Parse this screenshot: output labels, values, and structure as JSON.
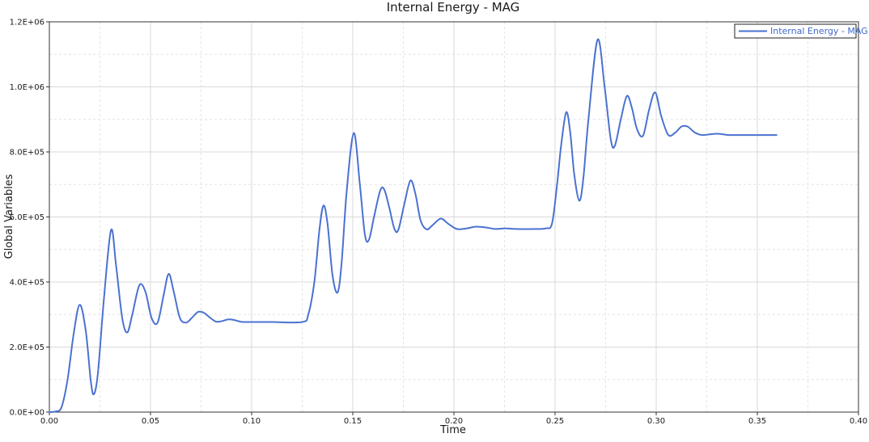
{
  "chart_data": {
    "type": "line",
    "title": "Internal Energy - MAG",
    "xlabel": "Time",
    "ylabel": "Global Variables",
    "xlim": [
      0,
      0.4
    ],
    "ylim": [
      0,
      1200000
    ],
    "grid": true,
    "legend_position": "top-right",
    "x_tick_labels": [
      "0.00",
      "0.05",
      "0.10",
      "0.15",
      "0.20",
      "0.25",
      "0.30",
      "0.35",
      "0.40"
    ],
    "y_tick_labels": [
      "0.0E+00",
      "2.0E+05",
      "4.0E+05",
      "6.0E+05",
      "8.0E+05",
      "1.0E+06",
      "1.2E+06"
    ],
    "series": [
      {
        "name": "Internal Energy - MAG",
        "color": "#4a72d0",
        "x": [
          0.0,
          0.003,
          0.006,
          0.009,
          0.012,
          0.015,
          0.018,
          0.0205,
          0.022,
          0.024,
          0.027,
          0.0305,
          0.033,
          0.036,
          0.0385,
          0.041,
          0.0445,
          0.0475,
          0.0505,
          0.0535,
          0.0565,
          0.059,
          0.0615,
          0.0645,
          0.0675,
          0.0705,
          0.0735,
          0.0765,
          0.0795,
          0.0825,
          0.0855,
          0.0885,
          0.0915,
          0.0945,
          0.0975,
          0.11,
          0.125,
          0.128,
          0.131,
          0.1335,
          0.1355,
          0.1375,
          0.14,
          0.1425,
          0.1445,
          0.147,
          0.1505,
          0.1535,
          0.156,
          0.158,
          0.1605,
          0.1635,
          0.1655,
          0.168,
          0.1705,
          0.1725,
          0.1755,
          0.1785,
          0.181,
          0.1835,
          0.1865,
          0.1895,
          0.1935,
          0.197,
          0.2015,
          0.2065,
          0.2105,
          0.2155,
          0.2205,
          0.2255,
          0.2305,
          0.2405,
          0.2455,
          0.2485,
          0.251,
          0.253,
          0.2555,
          0.2575,
          0.2595,
          0.262,
          0.264,
          0.2665,
          0.271,
          0.2745,
          0.2775,
          0.2795,
          0.2825,
          0.2855,
          0.288,
          0.2905,
          0.2935,
          0.2965,
          0.2995,
          0.3025,
          0.306,
          0.3095,
          0.3125,
          0.3155,
          0.319,
          0.3225,
          0.3265,
          0.3305,
          0.3355,
          0.3405,
          0.3505,
          0.3595
        ],
        "values": [
          0,
          2000,
          15000,
          100000,
          240000,
          330000,
          250000,
          95000,
          55000,
          120000,
          350000,
          560000,
          450000,
          290000,
          245000,
          300000,
          390000,
          370000,
          290000,
          275000,
          360000,
          425000,
          370000,
          290000,
          275000,
          290000,
          308000,
          305000,
          290000,
          278000,
          280000,
          285000,
          283000,
          278000,
          277000,
          277000,
          277000,
          300000,
          400000,
          560000,
          635000,
          580000,
          420000,
          368000,
          460000,
          680000,
          858000,
          700000,
          545000,
          530000,
          600000,
          680000,
          685000,
          630000,
          565000,
          560000,
          640000,
          712000,
          670000,
          590000,
          562000,
          575000,
          595000,
          580000,
          563000,
          565000,
          570000,
          568000,
          563000,
          565000,
          563000,
          563000,
          565000,
          580000,
          700000,
          820000,
          922000,
          860000,
          730000,
          650000,
          720000,
          900000,
          1145000,
          1000000,
          840000,
          818000,
          900000,
          972000,
          935000,
          870000,
          850000,
          930000,
          983000,
          910000,
          852000,
          860000,
          878000,
          878000,
          860000,
          852000,
          854000,
          856000,
          852000,
          852000,
          852000,
          852000
        ]
      }
    ]
  }
}
